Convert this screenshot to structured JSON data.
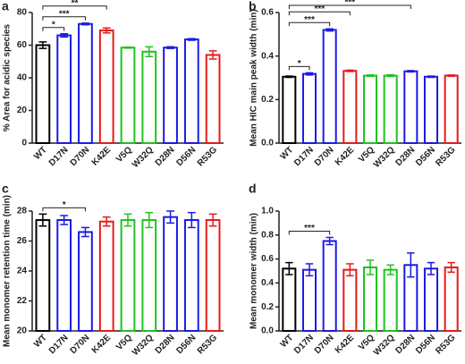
{
  "chart_data": [
    {
      "type": "bar",
      "label": "a",
      "y_label": "% Area for acidic species",
      "categories": [
        "WT",
        "D17N",
        "D70N",
        "K42E",
        "V5Q",
        "W32Q",
        "D28N",
        "D56N",
        "R53G"
      ],
      "values": [
        60,
        66,
        73,
        69,
        58.5,
        56,
        58.5,
        63.5,
        54
      ],
      "errors": [
        2,
        1,
        0.5,
        1.5,
        0.3,
        3,
        0.5,
        0.5,
        2.5
      ],
      "colors": [
        "#000000",
        "#1a1ae6",
        "#1a1ae6",
        "#e61a1a",
        "#1fc21f",
        "#1fc21f",
        "#1a1ae6",
        "#1a1ae6",
        "#e61a1a"
      ],
      "ylim": [
        0,
        80
      ],
      "yticks": [
        0,
        20,
        40,
        60,
        80
      ],
      "annotations": [
        {
          "from": "WT",
          "to": "D17N",
          "text": "*"
        },
        {
          "from": "WT",
          "to": "D70N",
          "text": "***"
        },
        {
          "from": "WT",
          "to": "K42E",
          "text": "**"
        }
      ]
    },
    {
      "type": "bar",
      "label": "b",
      "y_label": "Mean HIC main peak width (min)",
      "categories": [
        "WT",
        "D17N",
        "D70N",
        "K42E",
        "V5Q",
        "W32Q",
        "D28N",
        "D56N",
        "R53G"
      ],
      "values": [
        0.305,
        0.318,
        0.52,
        0.332,
        0.31,
        0.31,
        0.33,
        0.305,
        0.31
      ],
      "errors": [
        0.003,
        0.005,
        0.005,
        0.003,
        0.003,
        0.004,
        0.003,
        0.003,
        0.003
      ],
      "colors": [
        "#000000",
        "#1a1ae6",
        "#1a1ae6",
        "#e61a1a",
        "#1fc21f",
        "#1fc21f",
        "#1a1ae6",
        "#1a1ae6",
        "#e61a1a"
      ],
      "ylim": [
        0,
        0.6
      ],
      "yticks": [
        {
          "value": 0,
          "label": "0.0"
        },
        0.2,
        0.4,
        0.6
      ],
      "annotations": [
        {
          "from": "WT",
          "to": "D17N",
          "text": "*"
        },
        {
          "from": "WT",
          "to": "D70N",
          "text": "***"
        },
        {
          "from": "WT",
          "to": "K42E",
          "text": "***"
        },
        {
          "from": "WT",
          "to": "D28N",
          "text": "***"
        }
      ]
    },
    {
      "type": "bar",
      "label": "c",
      "y_label": "Mean monomer retention time (min)",
      "categories": [
        "WT",
        "D17N",
        "D70N",
        "K42E",
        "V5Q",
        "W32Q",
        "D28N",
        "D56N",
        "R53G"
      ],
      "values": [
        27.4,
        27.4,
        26.6,
        27.3,
        27.4,
        27.4,
        27.6,
        27.4,
        27.4
      ],
      "errors": [
        0.4,
        0.3,
        0.3,
        0.3,
        0.4,
        0.5,
        0.4,
        0.5,
        0.4
      ],
      "colors": [
        "#000000",
        "#1a1ae6",
        "#1a1ae6",
        "#e61a1a",
        "#1fc21f",
        "#1fc21f",
        "#1a1ae6",
        "#1a1ae6",
        "#e61a1a"
      ],
      "ylim": [
        20,
        28
      ],
      "yticks": [
        20,
        22,
        24,
        26,
        28
      ],
      "annotations": [
        {
          "from": "WT",
          "to": "D70N",
          "text": "*"
        }
      ]
    },
    {
      "type": "bar",
      "label": "d",
      "y_label": "Mean monomer width (min)",
      "categories": [
        "WT",
        "D17N",
        "D70N",
        "K42E",
        "V5Q",
        "W32Q",
        "D28N",
        "D56N",
        "R53G"
      ],
      "values": [
        0.52,
        0.51,
        0.75,
        0.51,
        0.53,
        0.51,
        0.55,
        0.52,
        0.53
      ],
      "errors": [
        0.05,
        0.05,
        0.03,
        0.05,
        0.06,
        0.04,
        0.1,
        0.05,
        0.04
      ],
      "colors": [
        "#000000",
        "#1a1ae6",
        "#1a1ae6",
        "#e61a1a",
        "#1fc21f",
        "#1fc21f",
        "#1a1ae6",
        "#1a1ae6",
        "#e61a1a"
      ],
      "ylim": [
        0,
        1.0
      ],
      "yticks": [
        {
          "value": 0,
          "label": "0.0"
        },
        0.2,
        0.4,
        0.6,
        0.8,
        {
          "value": 1.0,
          "label": "1.0"
        }
      ],
      "annotations": [
        {
          "from": "WT",
          "to": "D70N",
          "text": "***"
        }
      ]
    }
  ]
}
